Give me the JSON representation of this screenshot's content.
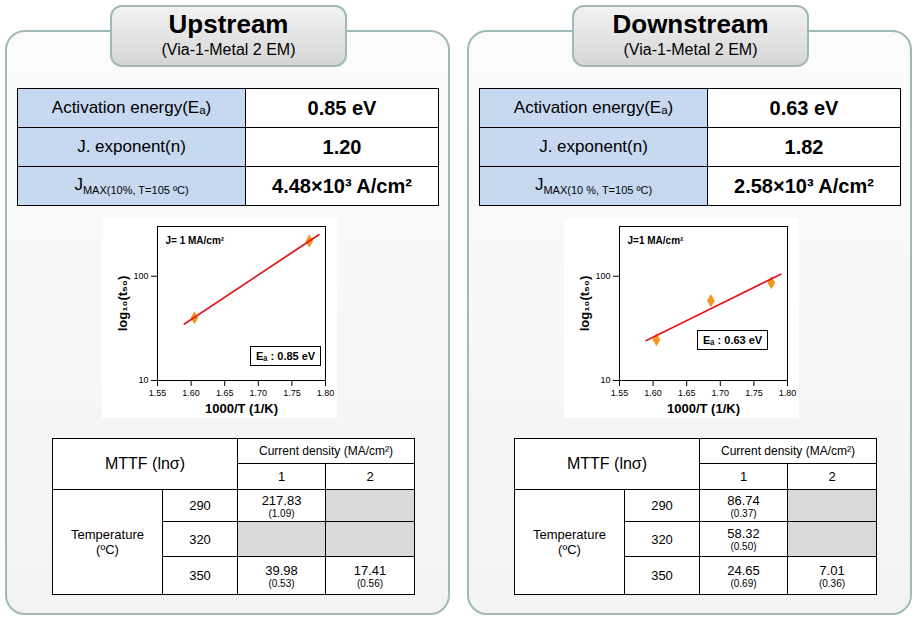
{
  "chart_data": [
    {
      "type": "scatter",
      "log": "y",
      "xlabel": "1000/T (1/K)",
      "ylabel": "log₁₀(t₅₀)",
      "xlim": [
        1.55,
        1.8
      ],
      "xticks": [
        {
          "value": 1.55,
          "label": "1.55"
        },
        {
          "value": 1.6,
          "label": "1.60"
        },
        {
          "value": 1.65,
          "label": "1.65"
        },
        {
          "value": 1.7,
          "label": "1.70"
        },
        {
          "value": 1.75,
          "label": "1.75"
        },
        {
          "value": 1.8,
          "label": "1.80"
        }
      ],
      "ylim": [
        10,
        300
      ],
      "yticks": [
        10,
        100
      ],
      "annotations": [
        "J= 1 MA/cm²",
        "Eₐ : 0.85 eV"
      ],
      "series": [
        {
          "type": "scatter",
          "marker": "diamond",
          "color": "#f7941d",
          "x": [
            1.605,
            1.776
          ],
          "values": [
            39.98,
            217.83
          ]
        },
        {
          "type": "line",
          "color": "#e31a1c",
          "x": [
            1.59,
            1.79
          ],
          "values": [
            34.8,
            250
          ]
        }
      ]
    },
    {
      "type": "scatter",
      "log": "y",
      "xlabel": "1000/T (1/K)",
      "ylabel": "log₁₀(t₅₀)",
      "xlim": [
        1.55,
        1.8
      ],
      "xticks": [
        {
          "value": 1.55,
          "label": "1.55"
        },
        {
          "value": 1.6,
          "label": "1.60"
        },
        {
          "value": 1.65,
          "label": "1.65"
        },
        {
          "value": 1.7,
          "label": "1.70"
        },
        {
          "value": 1.75,
          "label": "1.75"
        },
        {
          "value": 1.8,
          "label": "1.80"
        }
      ],
      "ylim": [
        10,
        300
      ],
      "yticks": [
        10,
        100
      ],
      "annotations": [
        "J=1 MA/cm²",
        "Eₐ : 0.63 eV"
      ],
      "series": [
        {
          "type": "scatter",
          "marker": "diamond",
          "color": "#f7941d",
          "x": [
            1.605,
            1.686,
            1.776
          ],
          "values": [
            24.65,
            58.32,
            86.74
          ]
        },
        {
          "type": "line",
          "color": "#e31a1c",
          "x": [
            1.59,
            1.79
          ],
          "values": [
            24.2,
            104.5
          ]
        }
      ]
    }
  ],
  "panels": [
    {
      "title": "Upstream",
      "subtitle": "(Via-1-Metal 2 EM)",
      "parameters": [
        {
          "label": {
            "main": "Activation energy(Eₐ)",
            "sub": ""
          },
          "value": "0.85 eV"
        },
        {
          "label": {
            "main": "J. exponent(n)",
            "sub": ""
          },
          "value": "1.20"
        },
        {
          "label": {
            "main": "J",
            "sub": "MAX(10%, T=105 ºC)"
          },
          "value": "4.48×10³ A/cm²"
        }
      ],
      "mttf": {
        "header": "MTTF (lnσ)",
        "column_header": "Current density (MA/cm²)",
        "columns": [
          "1",
          "2"
        ],
        "row_header": "Temperature (ºC)",
        "rows": [
          {
            "temperature": "290",
            "cells": [
              {
                "value": "217.83",
                "sigma": "(1.09)"
              },
              null
            ]
          },
          {
            "temperature": "320",
            "cells": [
              null,
              null
            ]
          },
          {
            "temperature": "350",
            "cells": [
              {
                "value": "39.98",
                "sigma": "(0.53)"
              },
              {
                "value": "17.41",
                "sigma": "(0.56)"
              }
            ]
          }
        ]
      }
    },
    {
      "title": "Downstream",
      "subtitle": "(Via-1-Metal 2 EM)",
      "parameters": [
        {
          "label": {
            "main": "Activation energy(Eₐ)",
            "sub": ""
          },
          "value": "0.63 eV"
        },
        {
          "label": {
            "main": "J. exponent(n)",
            "sub": ""
          },
          "value": "1.82"
        },
        {
          "label": {
            "main": "J",
            "sub": "MAX(10 %, T=105 ºC)"
          },
          "value": "2.58×10³ A/cm²"
        }
      ],
      "mttf": {
        "header": "MTTF (lnσ)",
        "column_header": "Current density (MA/cm²)",
        "columns": [
          "1",
          "2"
        ],
        "row_header": "Temperature (ºC)",
        "rows": [
          {
            "temperature": "290",
            "cells": [
              {
                "value": "86.74",
                "sigma": "(0.37)"
              },
              null
            ]
          },
          {
            "temperature": "320",
            "cells": [
              {
                "value": "58.32",
                "sigma": "(0.50)"
              },
              null
            ]
          },
          {
            "temperature": "350",
            "cells": [
              {
                "value": "24.65",
                "sigma": "(0.69)"
              },
              {
                "value": "7.01",
                "sigma": "(0.36)"
              }
            ]
          }
        ]
      }
    }
  ]
}
